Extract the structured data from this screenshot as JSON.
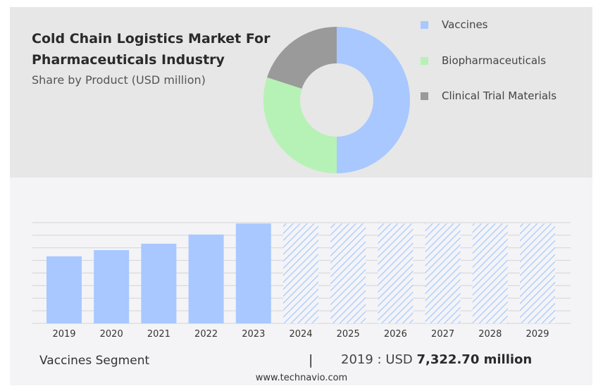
{
  "title": "Cold Chain Logistics Market For Pharmaceuticals Industry",
  "subtitle": "Share by Product (USD million)",
  "colors": {
    "vaccines": "#a8c8ff",
    "biopharmaceuticals": "#b6f2b5",
    "clinical_trial_materials": "#9a9a9a",
    "forecast_hatch": "#a8c8ff",
    "grid": "#d4d4d8"
  },
  "chart_data": [
    {
      "type": "pie",
      "subtype": "donut",
      "categories": [
        "Vaccines",
        "Biopharmaceuticals",
        "Clinical Trial Materials"
      ],
      "values": [
        50,
        30,
        20
      ],
      "legend": "right"
    },
    {
      "type": "bar",
      "categories": [
        "2019",
        "2020",
        "2021",
        "2022",
        "2023",
        "2024",
        "2025",
        "2026",
        "2027",
        "2028",
        "2029"
      ],
      "values": [
        7322.7,
        8000,
        8700,
        9700,
        10900,
        10900,
        10900,
        10900,
        10900,
        10900,
        10900
      ],
      "forecast_from": "2024",
      "grid": true,
      "ylim": [
        0,
        11000
      ]
    }
  ],
  "footer": {
    "segment": "Vaccines Segment",
    "separator": "|",
    "year_label": "2019 : USD",
    "value": "7,322.70 million"
  },
  "watermark": "www.technavio.com"
}
